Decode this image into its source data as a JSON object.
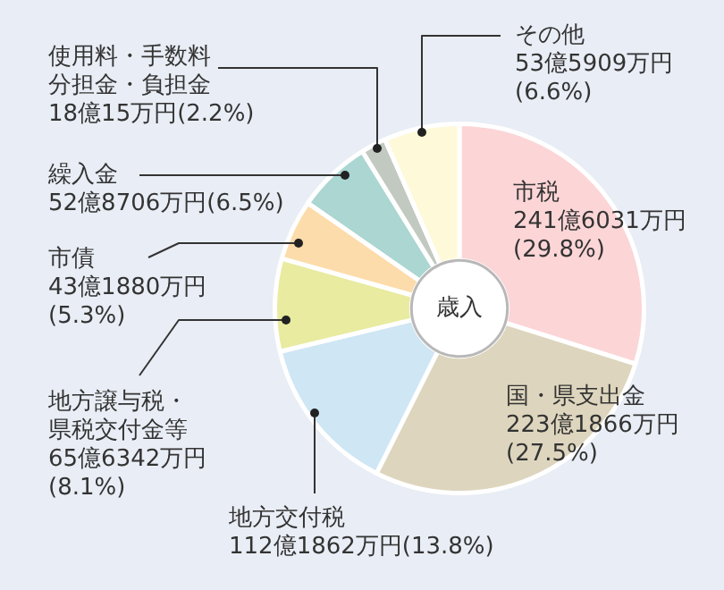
{
  "chart_data": {
    "type": "donut",
    "title": "歳入",
    "categories": [
      "市税",
      "国・県支出金",
      "地方交付税",
      "地方譲与税・県税交付金等",
      "市債",
      "繰入金",
      "使用料・手数料分担金・負担金",
      "その他"
    ],
    "values": [
      29.8,
      27.5,
      13.8,
      8.1,
      5.3,
      6.5,
      2.2,
      6.6
    ],
    "value_labels": [
      "241億6031万円\n(29.8%)",
      "223億1866万円\n(27.5%)",
      "112億1862万円(13.8%)",
      "65億6342万円\n(8.1%)",
      "43億1880万円\n(5.3%)",
      "52億8706万円(6.5%)",
      "18億15万円(2.2%)",
      "53億5909万円\n(6.6%)"
    ],
    "colors": [
      "#fcd5d7",
      "#ddd5bd",
      "#cfe6f4",
      "#e8eba0",
      "#fcdcaa",
      "#abd6d2",
      "#c2c9c1",
      "#fef9d8"
    ],
    "legend": false
  }
}
